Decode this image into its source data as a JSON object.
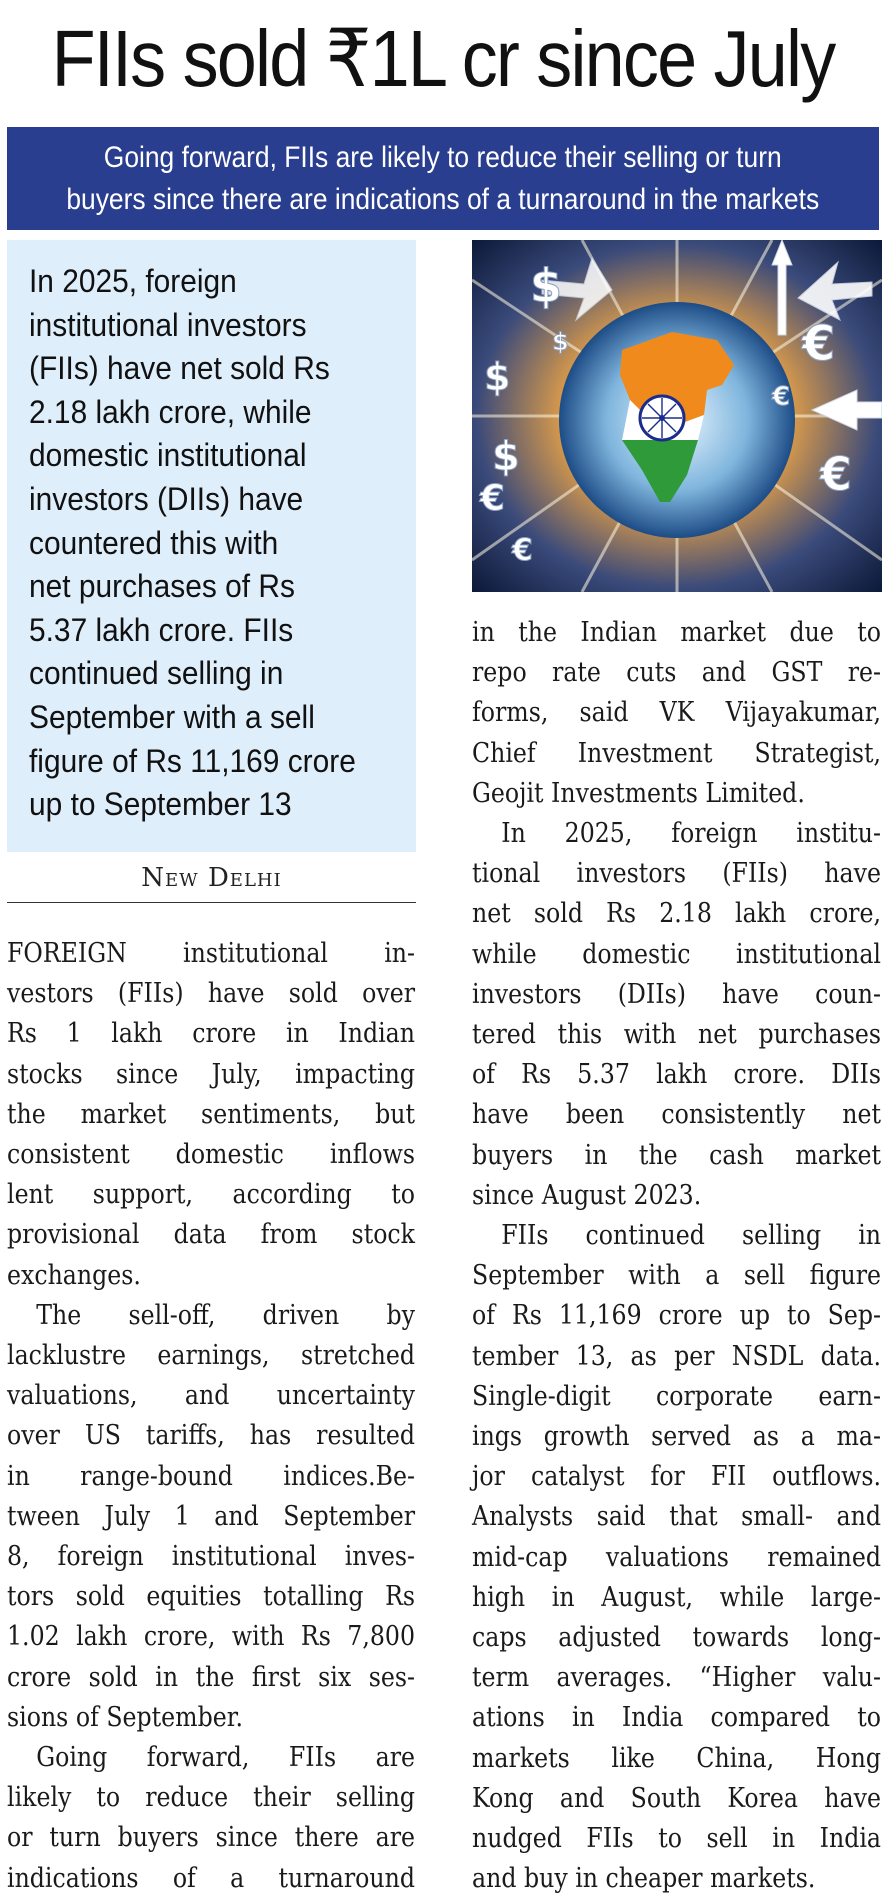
{
  "headline": "FIIs sold ₹1L cr since July",
  "deck": [
    "Going forward, FIIs are likely to reduce their selling or turn",
    "buyers since there are indications of a turnaround in the markets"
  ],
  "highlight": [
    "In 2025, foreign",
    "institutional investors",
    "(FIIs) have net sold Rs",
    "2.18 lakh crore, while",
    "domestic institutional",
    "investors (DIIs) have",
    "countered this with",
    "net purchases of Rs",
    "5.37 lakh crore. FIIs",
    "continued selling in",
    "September with a sell",
    "figure of Rs 11,169 crore",
    "up to September 13"
  ],
  "dateline": "New Delhi",
  "left_column": [
    "FOREIGN institutional in-",
    "vestors (FIIs) have sold over",
    "Rs 1 lakh crore in Indian",
    "stocks since July, impacting",
    "the market sentiments, but",
    "consistent domestic inflows",
    "lent support, according to",
    "provisional data from stock",
    "exchanges.",
    "The sell-off, driven by",
    "lacklustre earnings, stretched",
    "valuations, and uncertainty",
    "over US tariffs, has resulted",
    "in range-bound indices.Be-",
    "tween July 1 and September",
    "8, foreign institutional inves-",
    "tors sold equities totalling Rs",
    "1.02 lakh crore, with Rs 7,800",
    "crore sold in the first six ses-",
    "sions of September.",
    "Going forward, FIIs are",
    "likely to reduce their selling",
    "or turn buyers since there are",
    "indications of a turnaround"
  ],
  "right_column": [
    "in the Indian market due to",
    "repo rate cuts and GST re-",
    "forms, said VK Vijayakumar,",
    "Chief Investment Strategist,",
    "Geojit Investments Limited.",
    "In 2025, foreign institu-",
    "tional investors (FIIs) have",
    "net sold Rs 2.18 lakh crore,",
    "while domestic institutional",
    "investors (DIIs) have coun-",
    "tered this with net purchases",
    "of Rs 5.37 lakh crore. DIIs",
    "have been consistently net",
    "buyers in the cash market",
    "since August 2023.",
    "FIIs continued selling in",
    "September with a sell figure",
    "of Rs 11,169 crore up to Sep-",
    "tember 13, as per NSDL data.",
    "Single-digit corporate earn-",
    "ings growth served as a ma-",
    "jor catalyst for FII outflows.",
    "Analysts said that small- and",
    "mid-cap valuations remained",
    "high in August, while large-",
    "caps adjusted towards long-",
    "term averages. “Higher valu-",
    "ations in India compared to",
    "markets like China, Hong",
    "Kong and South Korea have",
    "nudged FIIs to sell in India",
    "and buy in cheaper markets."
  ],
  "photo": {
    "glyphs": [
      "$",
      "$",
      "$",
      "€",
      "€",
      "€",
      "€",
      "€",
      "$"
    ]
  },
  "colors": {
    "deck_bg": "#2a3e8f",
    "highlight_bg": "#dfeefb"
  }
}
